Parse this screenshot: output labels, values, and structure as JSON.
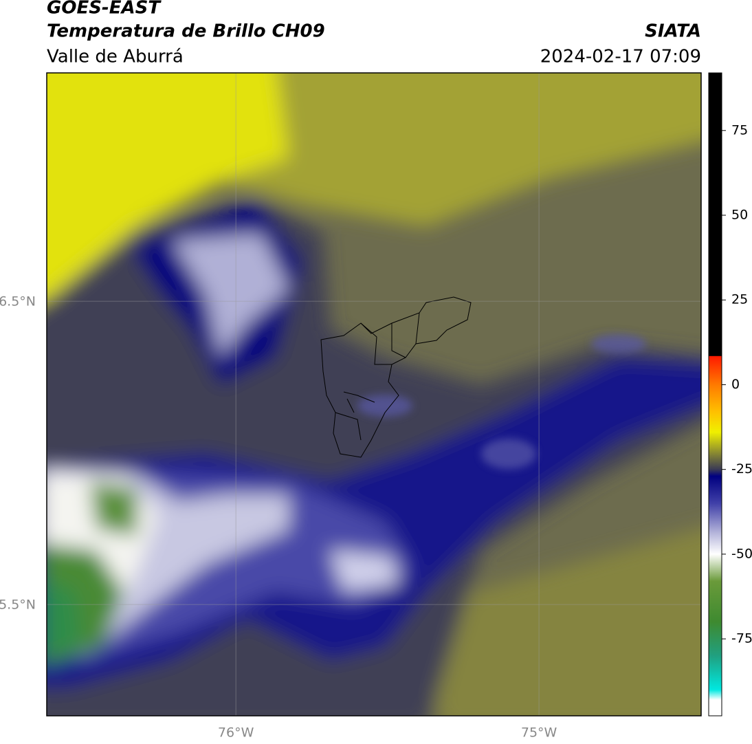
{
  "header": {
    "title": "GOES-EAST",
    "subtitle": "Temperatura de Brillo CH09",
    "region": "Valle de Aburrá",
    "source": "SIATA",
    "timestamp": "2024-02-17 07:09"
  },
  "map": {
    "xlim": [
      -76.624,
      -74.465
    ],
    "ylim": [
      5.133,
      7.253
    ],
    "xticks": [
      {
        "value": -76,
        "label": "76°W"
      },
      {
        "value": -75,
        "label": "75°W"
      }
    ],
    "yticks": [
      {
        "value": 6.5,
        "label": "6.5°N"
      },
      {
        "value": 5.5,
        "label": "5.5°N"
      }
    ],
    "grid": true
  },
  "colorbar": {
    "lim": [
      -97.7,
      92
    ],
    "ticks": [
      75,
      50,
      25,
      0,
      -25,
      -50,
      -75
    ],
    "colormap": [
      {
        "value": 92,
        "color": "#000000"
      },
      {
        "value": 8.5,
        "color": "#000000"
      },
      {
        "value": 8.4,
        "color": "#ff1a00"
      },
      {
        "value": 0,
        "color": "#ff7a00"
      },
      {
        "value": -8,
        "color": "#ffc000"
      },
      {
        "value": -14,
        "color": "#f0f000"
      },
      {
        "value": -20,
        "color": "#8c8c30"
      },
      {
        "value": -25,
        "color": "#3a3a55"
      },
      {
        "value": -27,
        "color": "#000080"
      },
      {
        "value": -35,
        "color": "#4040a8"
      },
      {
        "value": -44,
        "color": "#b8b8dc"
      },
      {
        "value": -50,
        "color": "#ffffff"
      },
      {
        "value": -58,
        "color": "#6a9a3a"
      },
      {
        "value": -70,
        "color": "#3e8a30"
      },
      {
        "value": -80,
        "color": "#20a080"
      },
      {
        "value": -90,
        "color": "#00e8e0"
      },
      {
        "value": -93,
        "color": "#ffffff"
      },
      {
        "value": -97.7,
        "color": "#ffffff"
      }
    ]
  }
}
